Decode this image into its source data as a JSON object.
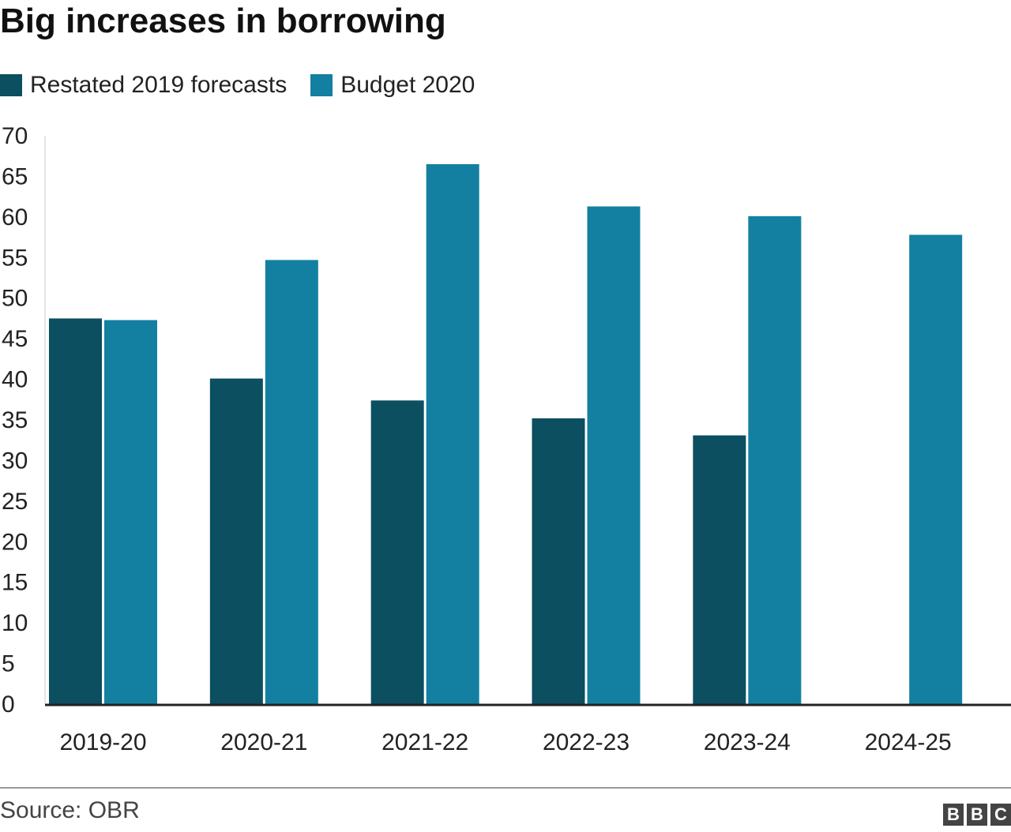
{
  "title": "Big increases in borrowing",
  "source": "Source: OBR",
  "logo": [
    "B",
    "B",
    "C"
  ],
  "colors": {
    "restated": "#0b4f60",
    "budget": "#1380a1",
    "axis": "#222222",
    "grid": "#dddddd"
  },
  "chart_data": {
    "type": "bar",
    "title": "Big increases in borrowing",
    "xlabel": "",
    "ylabel": "",
    "ylim": [
      0,
      70
    ],
    "yticks": [
      0,
      5,
      10,
      15,
      20,
      25,
      30,
      35,
      40,
      45,
      50,
      55,
      60,
      65,
      70
    ],
    "grid": false,
    "legend_position": "top-left",
    "categories": [
      "2019-20",
      "2020-21",
      "2021-22",
      "2022-23",
      "2023-24",
      "2024-25"
    ],
    "series": [
      {
        "name": "Restated 2019 forecasts",
        "values": [
          47.5,
          40.1,
          37.4,
          35.2,
          33.1,
          null
        ]
      },
      {
        "name": "Budget 2020",
        "values": [
          47.3,
          54.7,
          66.5,
          61.3,
          60.1,
          57.8
        ]
      }
    ]
  }
}
